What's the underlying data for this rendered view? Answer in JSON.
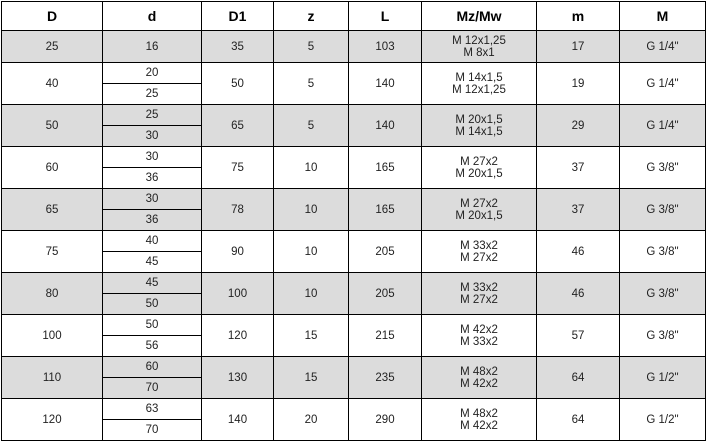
{
  "columns": [
    "D",
    "d",
    "D1",
    "z",
    "L",
    "Mz/Mw",
    "m",
    "M"
  ],
  "colors": {
    "shaded_row": "#dcdcdc",
    "border": "#000000"
  },
  "rows": [
    {
      "D": "25",
      "d": [
        "16"
      ],
      "D1": "35",
      "z": "5",
      "L": "103",
      "mz": [
        "M 12x1,25",
        "M 8x1"
      ],
      "m": "17",
      "M": "G 1/4\"",
      "shaded": true
    },
    {
      "D": "40",
      "d": [
        "20",
        "25"
      ],
      "D1": "50",
      "z": "5",
      "L": "140",
      "mz": [
        "M 14x1,5",
        "M 12x1,25"
      ],
      "m": "19",
      "M": "G 1/4\"",
      "shaded": false
    },
    {
      "D": "50",
      "d": [
        "25",
        "30"
      ],
      "D1": "65",
      "z": "5",
      "L": "140",
      "mz": [
        "M 20x1,5",
        "M 14x1,5"
      ],
      "m": "29",
      "M": "G 1/4\"",
      "shaded": true
    },
    {
      "D": "60",
      "d": [
        "30",
        "36"
      ],
      "D1": "75",
      "z": "10",
      "L": "165",
      "mz": [
        "M 27x2",
        "M 20x1,5"
      ],
      "m": "37",
      "M": "G 3/8\"",
      "shaded": false
    },
    {
      "D": "65",
      "d": [
        "30",
        "36"
      ],
      "D1": "78",
      "z": "10",
      "L": "165",
      "mz": [
        "M 27x2",
        "M 20x1,5"
      ],
      "m": "37",
      "M": "G 3/8\"",
      "shaded": true
    },
    {
      "D": "75",
      "d": [
        "40",
        "45"
      ],
      "D1": "90",
      "z": "10",
      "L": "205",
      "mz": [
        "M 33x2",
        "M 27x2"
      ],
      "m": "46",
      "M": "G 3/8\"",
      "shaded": false
    },
    {
      "D": "80",
      "d": [
        "45",
        "50"
      ],
      "D1": "100",
      "z": "10",
      "L": "205",
      "mz": [
        "M 33x2",
        "M 27x2"
      ],
      "m": "46",
      "M": "G 3/8\"",
      "shaded": true
    },
    {
      "D": "100",
      "d": [
        "50",
        "56"
      ],
      "D1": "120",
      "z": "15",
      "L": "215",
      "mz": [
        "M 42x2",
        "M 33x2"
      ],
      "m": "57",
      "M": "G 3/8\"",
      "shaded": false
    },
    {
      "D": "110",
      "d": [
        "60",
        "70"
      ],
      "D1": "130",
      "z": "15",
      "L": "235",
      "mz": [
        "M 48x2",
        "M 42x2"
      ],
      "m": "64",
      "M": "G 1/2\"",
      "shaded": true
    },
    {
      "D": "120",
      "d": [
        "63",
        "70"
      ],
      "D1": "140",
      "z": "20",
      "L": "290",
      "mz": [
        "M 48x2",
        "M 42x2"
      ],
      "m": "64",
      "M": "G 1/2\"",
      "shaded": false
    }
  ]
}
